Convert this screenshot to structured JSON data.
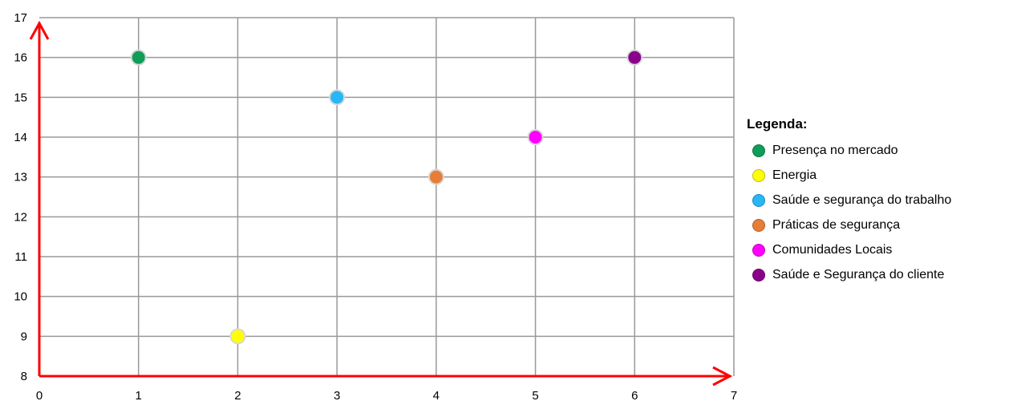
{
  "chart_data": {
    "type": "scatter",
    "title": "",
    "xlabel": "",
    "ylabel": "",
    "xlim": [
      0,
      7
    ],
    "ylim": [
      8,
      17
    ],
    "x_ticks": [
      "0",
      "1",
      "2",
      "3",
      "4",
      "5",
      "6",
      "7"
    ],
    "y_ticks": [
      "8",
      "9",
      "10",
      "11",
      "12",
      "13",
      "14",
      "15",
      "16",
      "17"
    ],
    "grid": true,
    "axis_color": "#ff0000",
    "grid_color": "#999999",
    "legend_position": "right",
    "legend_title": "Legenda:",
    "series": [
      {
        "name": "Presença no mercado",
        "x": 1,
        "y": 16,
        "color": "#0f9d58"
      },
      {
        "name": "Energia",
        "x": 2,
        "y": 9,
        "color": "#ffff00"
      },
      {
        "name": "Saúde e segurança do trabalho",
        "x": 3,
        "y": 15,
        "color": "#29b6f6"
      },
      {
        "name": "Práticas de segurança",
        "x": 4,
        "y": 13,
        "color": "#e67e3a"
      },
      {
        "name": "Comunidades Locais",
        "x": 5,
        "y": 14,
        "color": "#ff00ff"
      },
      {
        "name": "Saúde e Segurança do cliente",
        "x": 6,
        "y": 16,
        "color": "#8b008b"
      }
    ]
  }
}
